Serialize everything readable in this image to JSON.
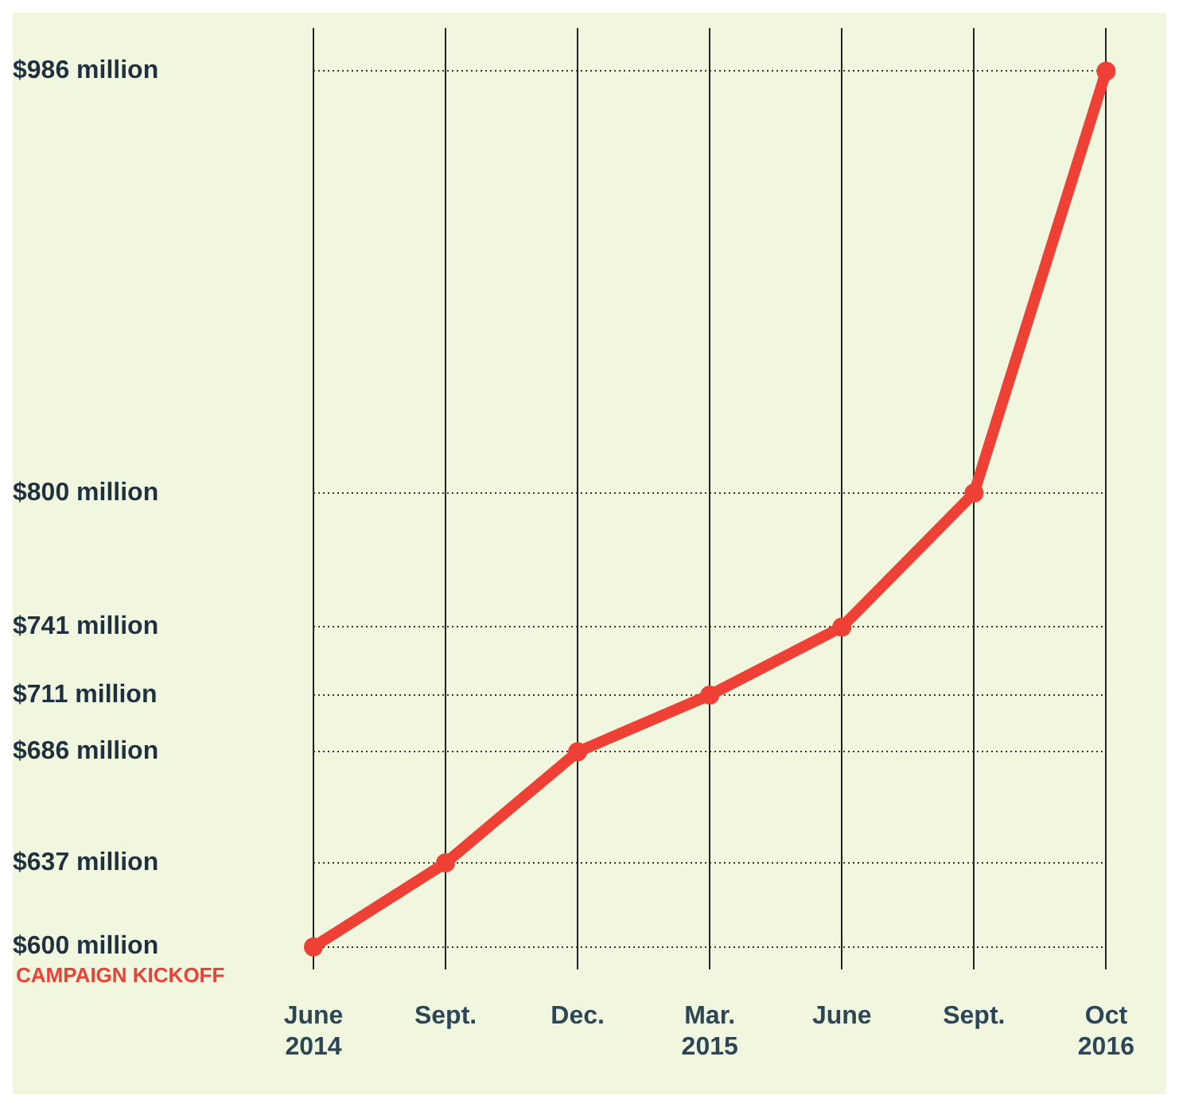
{
  "chart_data": {
    "type": "line",
    "categories": [
      "June\n2014",
      "Sept.",
      "Dec.",
      "Mar.\n2015",
      "June",
      "Sept.",
      "Oct\n2016"
    ],
    "series": [
      {
        "color": "#ee4035",
        "values": [
          600,
          637,
          686,
          711,
          741,
          800,
          986
        ]
      }
    ],
    "ylim": [
      590,
      1005
    ],
    "yticks": [
      {
        "value": 600,
        "label": "$600 million"
      },
      {
        "value": 637,
        "label": "$637 million"
      },
      {
        "value": 686,
        "label": "$686 million"
      },
      {
        "value": 711,
        "label": "$711 million"
      },
      {
        "value": 741,
        "label": "$741 million"
      },
      {
        "value": 800,
        "label": "$800 million"
      },
      {
        "value": 986,
        "label": "$986 million"
      }
    ],
    "annotations": [
      "CAMPAIGN KICKOFF"
    ],
    "grid": true,
    "legend": false,
    "marker": "circle",
    "line_style": "solid"
  }
}
